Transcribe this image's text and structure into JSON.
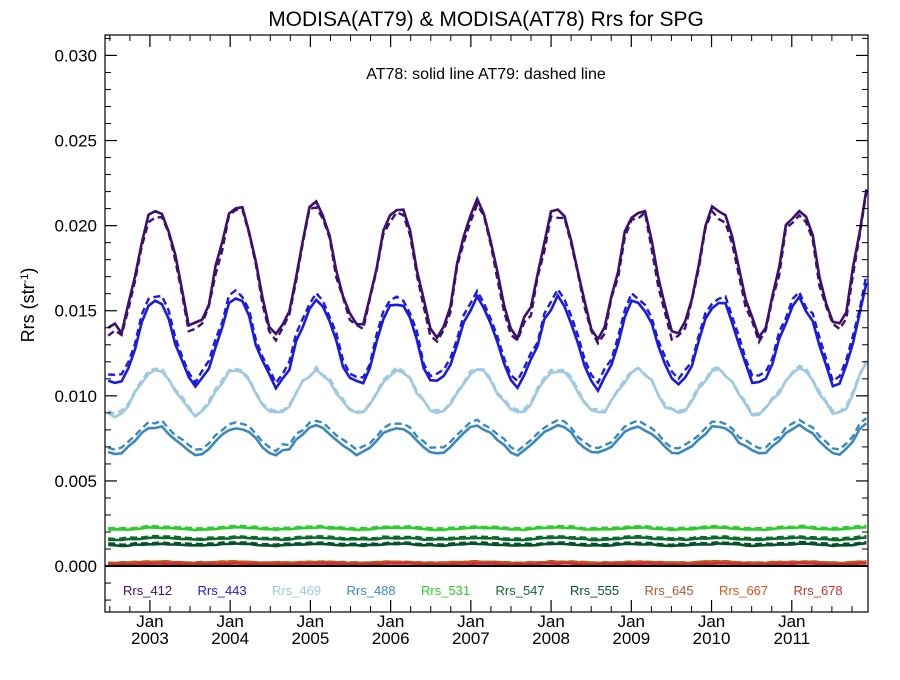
{
  "chart_data": {
    "type": "line",
    "title": "MODISA(AT79) & MODISA(AT78)  Rrs for SPG",
    "ylabel_base": "Rrs (str",
    "ylabel_sup": "-1",
    "ylabel_close": ")",
    "annotation": "AT78: solid line   AT79: dashed line",
    "ylim": [
      -0.0027,
      0.0312
    ],
    "xlim": [
      2002.44,
      2011.95
    ],
    "yticks": [
      "0.000",
      "0.005",
      "0.010",
      "0.015",
      "0.020",
      "0.025",
      "0.030"
    ],
    "ytick_values": [
      0.0,
      0.005,
      0.01,
      0.015,
      0.02,
      0.025,
      0.03
    ],
    "xticks": [
      {
        "month": "Jan",
        "year": "2003",
        "x": 2003.0
      },
      {
        "month": "Jan",
        "year": "2004",
        "x": 2004.0
      },
      {
        "month": "Jan",
        "year": "2005",
        "x": 2005.0
      },
      {
        "month": "Jan",
        "year": "2006",
        "x": 2006.0
      },
      {
        "month": "Jan",
        "year": "2007",
        "x": 2007.0
      },
      {
        "month": "Jan",
        "year": "2008",
        "x": 2008.0
      },
      {
        "month": "Jan",
        "year": "2009",
        "x": 2009.0
      },
      {
        "month": "Jan",
        "year": "2010",
        "x": 2010.0
      },
      {
        "month": "Jan",
        "year": "2011",
        "x": 2011.0
      }
    ],
    "legend_placement": "bottom-inside",
    "series": [
      {
        "name": "Rrs_412",
        "color": "#3d1070",
        "mean": 0.0175,
        "amp": 0.0037,
        "noise": 0.0005,
        "diff": -0.0003
      },
      {
        "name": "Rrs_443",
        "color": "#1a1ae0",
        "mean": 0.0131,
        "amp": 0.0025,
        "noise": 0.0003,
        "diff": 0.00035
      },
      {
        "name": "Rrs_469",
        "color": "#9ec9e2",
        "mean": 0.0102,
        "amp": 0.0013,
        "noise": 0.00018,
        "diff": 0.0001
      },
      {
        "name": "Rrs_488",
        "color": "#3a88be",
        "mean": 0.0074,
        "amp": 0.0008,
        "noise": 0.00012,
        "diff": 0.0003
      },
      {
        "name": "Rrs_531",
        "color": "#2ccc2c",
        "mean": 0.0022,
        "amp": 6e-05,
        "noise": 3e-05,
        "diff": 8e-05
      },
      {
        "name": "Rrs_547",
        "color": "#0b6b2a",
        "mean": 0.0016,
        "amp": 5e-05,
        "noise": 3e-05,
        "diff": 8e-05
      },
      {
        "name": "Rrs_555",
        "color": "#06502a",
        "mean": 0.00125,
        "amp": 5e-05,
        "noise": 3e-05,
        "diff": 8e-05
      },
      {
        "name": "Rrs_645",
        "color": "#b0562a",
        "mean": 0.00022,
        "amp": 3e-05,
        "noise": 2e-05,
        "diff": 2e-05
      },
      {
        "name": "Rrs_667",
        "color": "#d8561a",
        "mean": 0.00016,
        "amp": 3e-05,
        "noise": 2e-05,
        "diff": 2e-05
      },
      {
        "name": "Rrs_678",
        "color": "#c8302a",
        "mean": 0.00012,
        "amp": 3e-05,
        "noise": 2e-05,
        "diff": 2e-05
      }
    ]
  }
}
